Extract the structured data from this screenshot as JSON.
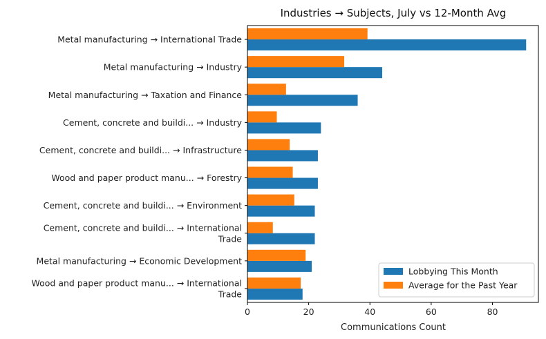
{
  "chart_data": {
    "type": "bar",
    "orientation": "horizontal",
    "title": "Industries → Subjects, July vs 12-Month Avg",
    "xlabel": "Communications Count",
    "ylabel": "",
    "xlim": [
      0,
      95
    ],
    "xticks": [
      "0",
      "20",
      "40",
      "60",
      "80"
    ],
    "xtick_values": [
      0,
      20,
      40,
      60,
      80
    ],
    "grid": false,
    "legend_position": "bottom-right",
    "categories": [
      [
        "Metal manufacturing → International Trade"
      ],
      [
        "Metal manufacturing → Industry"
      ],
      [
        "Metal manufacturing → Taxation and Finance"
      ],
      [
        "Cement, concrete and buildi... → Industry"
      ],
      [
        "Cement, concrete and buildi... → Infrastructure"
      ],
      [
        "Wood and paper product manu... → Forestry"
      ],
      [
        "Cement, concrete and buildi... → Environment"
      ],
      [
        "Cement, concrete and buildi... → International",
        "Trade"
      ],
      [
        "Metal manufacturing → Economic Development"
      ],
      [
        "Wood and paper product manu... → International",
        "Trade"
      ]
    ],
    "series": [
      {
        "name": "Lobbying This Month",
        "color": "#1f77b4",
        "values": [
          91,
          44,
          36,
          24,
          23,
          23,
          22,
          22,
          21,
          18
        ]
      },
      {
        "name": "Average for the Past Year",
        "color": "#ff7f0e",
        "values": [
          39.2,
          31.6,
          12.6,
          9.6,
          13.8,
          14.8,
          15.3,
          8.3,
          19,
          17.4
        ]
      }
    ]
  }
}
